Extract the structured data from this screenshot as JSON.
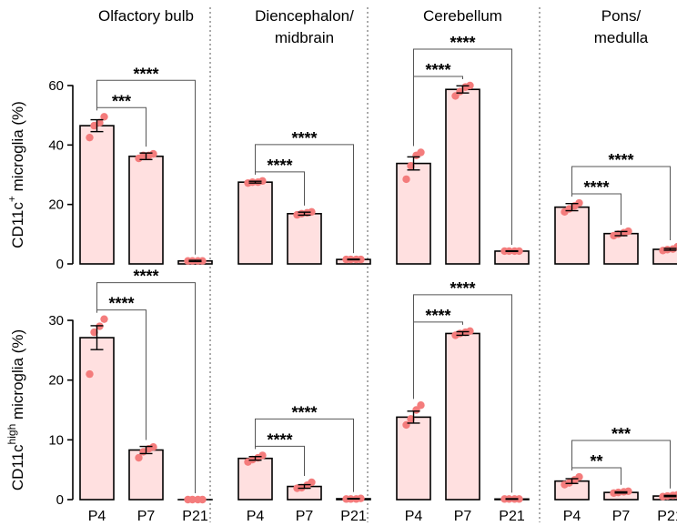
{
  "colors": {
    "bar_fill": "#ffe0e0",
    "bar_stroke": "#000000",
    "point": "#f47c7c",
    "divider": "#555555"
  },
  "chart_data": {
    "type": "bar",
    "categories": [
      "P4",
      "P7",
      "P21"
    ],
    "regions": [
      {
        "key": "ob",
        "title_lines": [
          "Olfactory bulb"
        ]
      },
      {
        "key": "dm",
        "title_lines": [
          "Diencephalon/",
          "midbrain"
        ]
      },
      {
        "key": "cb",
        "title_lines": [
          "Cerebellum"
        ]
      },
      {
        "key": "pm",
        "title_lines": [
          "Pons/",
          "medulla"
        ]
      }
    ],
    "rows": [
      {
        "ylabel_main": "CD11c",
        "ylabel_sup": "+",
        "ylabel_tail": " microglia (%)",
        "ylim": [
          0,
          60
        ],
        "yticks": [
          0,
          20,
          40,
          60
        ],
        "ytick_labels": [
          "0",
          "20",
          "40",
          "60"
        ],
        "panels": [
          {
            "region": "ob",
            "means": [
              46.5,
              36.2,
              1.0
            ],
            "sem": [
              2.0,
              1.1,
              0.2
            ],
            "points": [
              [
                42.5,
                46.5,
                47.5,
                49.5
              ],
              [
                35.5,
                36.5,
                36.5,
                37.0
              ],
              [
                1.0,
                1.0,
                1.0,
                1.0
              ]
            ],
            "comparisons": [
              {
                "pair": "P4–P7",
                "label": "***"
              },
              {
                "pair": "P4–P21",
                "label": "****"
              }
            ]
          },
          {
            "region": "dm",
            "means": [
              27.5,
              16.9,
              1.5
            ],
            "sem": [
              0.3,
              0.5,
              0.1
            ],
            "points": [
              [
                27.2,
                27.5,
                27.5,
                27.9
              ],
              [
                16.5,
                16.9,
                17.2,
                17.5
              ],
              [
                1.5,
                1.5,
                1.5,
                1.5
              ]
            ],
            "comparisons": [
              {
                "pair": "P4–P7",
                "label": "****"
              },
              {
                "pair": "P4–P21",
                "label": "****"
              }
            ]
          },
          {
            "region": "cb",
            "means": [
              33.8,
              58.7,
              4.3
            ],
            "sem": [
              2.2,
              1.2,
              0.1
            ],
            "points": [
              [
                28.5,
                33.0,
                36.5,
                37.5
              ],
              [
                56.5,
                58.0,
                59.5,
                60.0
              ],
              [
                4.3,
                4.3,
                4.3,
                4.3
              ]
            ],
            "comparisons": [
              {
                "pair": "P4–P7",
                "label": "****"
              },
              {
                "pair": "P4–P21",
                "label": "****"
              }
            ]
          },
          {
            "region": "pm",
            "means": [
              19.1,
              10.2,
              4.9
            ],
            "sem": [
              1.2,
              0.7,
              0.3
            ],
            "points": [
              [
                17.5,
                18.5,
                19.5,
                20.5
              ],
              [
                9.5,
                10.0,
                10.5,
                11.0
              ],
              [
                4.5,
                4.8,
                5.0,
                5.8
              ]
            ],
            "comparisons": [
              {
                "pair": "P4–P7",
                "label": "****"
              },
              {
                "pair": "P4–P21",
                "label": "****"
              }
            ]
          }
        ]
      },
      {
        "ylabel_main": "CD11c",
        "ylabel_sup": "high",
        "ylabel_tail": " microglia (%)",
        "ylim": [
          0,
          30
        ],
        "yticks": [
          0,
          10,
          20,
          30
        ],
        "ytick_labels": [
          "0",
          "10",
          "20",
          "30"
        ],
        "panels": [
          {
            "region": "ob",
            "means": [
              27.1,
              8.3,
              0.0
            ],
            "sem": [
              2.0,
              0.6,
              0.0
            ],
            "points": [
              [
                21.0,
                28.0,
                29.0,
                30.2
              ],
              [
                7.0,
                8.0,
                8.5,
                8.8
              ],
              [
                0.0,
                0.0,
                0.0,
                0.0
              ]
            ],
            "comparisons": [
              {
                "pair": "P4–P7",
                "label": "****"
              },
              {
                "pair": "P4–P21",
                "label": "****"
              }
            ]
          },
          {
            "region": "dm",
            "means": [
              6.9,
              2.2,
              0.15
            ],
            "sem": [
              0.3,
              0.3,
              0.05
            ],
            "points": [
              [
                6.3,
                6.7,
                7.0,
                7.4
              ],
              [
                1.9,
                2.0,
                2.4,
                2.9
              ],
              [
                0.1,
                0.1,
                0.1,
                0.2
              ]
            ],
            "comparisons": [
              {
                "pair": "P4–P7",
                "label": "****"
              },
              {
                "pair": "P4–P21",
                "label": "****"
              }
            ]
          },
          {
            "region": "cb",
            "means": [
              13.8,
              27.8,
              0.1
            ],
            "sem": [
              1.0,
              0.3,
              0.05
            ],
            "points": [
              [
                12.5,
                13.5,
                15.0,
                15.8
              ],
              [
                27.5,
                27.8,
                28.0,
                28.2
              ],
              [
                0.1,
                0.1,
                0.1,
                0.1
              ]
            ],
            "comparisons": [
              {
                "pair": "P4–P7",
                "label": "****"
              },
              {
                "pair": "P4–P21",
                "label": "****"
              }
            ]
          },
          {
            "region": "pm",
            "means": [
              3.1,
              1.2,
              0.6
            ],
            "sem": [
              0.4,
              0.1,
              0.1
            ],
            "points": [
              [
                2.5,
                2.8,
                3.3,
                3.8
              ],
              [
                1.1,
                1.2,
                1.3,
                1.4
              ],
              [
                0.5,
                0.6,
                0.7,
                0.8
              ]
            ],
            "comparisons": [
              {
                "pair": "P4–P7",
                "label": "**"
              },
              {
                "pair": "P4–P21",
                "label": "***"
              }
            ]
          }
        ]
      }
    ]
  }
}
